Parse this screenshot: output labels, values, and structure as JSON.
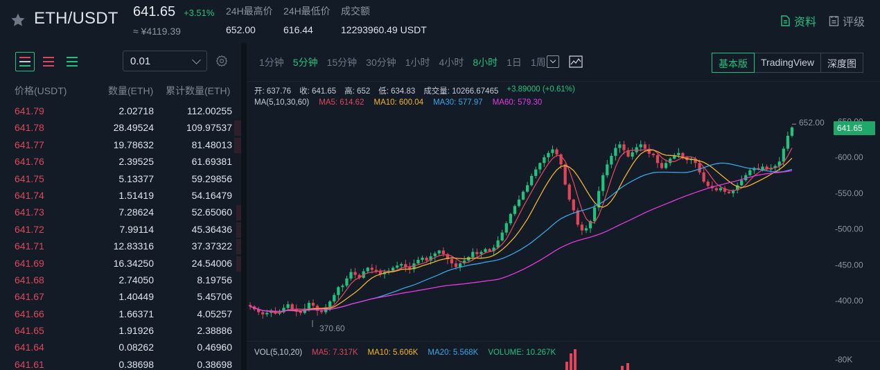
{
  "header": {
    "pair": "ETH/USDT",
    "price": "641.65",
    "change": "+3.51%",
    "cny": "≈ ¥4119.39",
    "stats": [
      {
        "label": "24H最高价",
        "value": "652.00"
      },
      {
        "label": "24H最低价",
        "value": "616.44"
      },
      {
        "label": "成交额",
        "value": "12293960.49 USDT"
      }
    ],
    "links": [
      {
        "label": "资料",
        "icon": "document-icon"
      },
      {
        "label": "评级",
        "icon": "rating-icon"
      }
    ]
  },
  "orderbook": {
    "precision": "0.01",
    "headers": {
      "price": "价格(USDT)",
      "amount": "数量(ETH)",
      "total": "累计数量(ETH)"
    },
    "rows": [
      {
        "price": "641.79",
        "amount": "2.02718",
        "total": "112.00255",
        "depth": 0
      },
      {
        "price": "641.78",
        "amount": "28.49524",
        "total": "109.97537",
        "depth": 0.03
      },
      {
        "price": "641.77",
        "amount": "19.78632",
        "total": "81.48013",
        "depth": 0.03
      },
      {
        "price": "641.76",
        "amount": "2.39525",
        "total": "61.69381",
        "depth": 0
      },
      {
        "price": "641.75",
        "amount": "5.13377",
        "total": "59.29856",
        "depth": 0
      },
      {
        "price": "641.74",
        "amount": "1.51419",
        "total": "54.16479",
        "depth": 0
      },
      {
        "price": "641.73",
        "amount": "7.28624",
        "total": "52.65060",
        "depth": 0.02
      },
      {
        "price": "641.72",
        "amount": "7.99114",
        "total": "45.36436",
        "depth": 0.02
      },
      {
        "price": "641.71",
        "amount": "12.83316",
        "total": "37.37322",
        "depth": 0.02
      },
      {
        "price": "641.69",
        "amount": "16.34250",
        "total": "24.54006",
        "depth": 0.02
      },
      {
        "price": "641.68",
        "amount": "2.74050",
        "total": "8.19756",
        "depth": 0
      },
      {
        "price": "641.67",
        "amount": "1.40449",
        "total": "5.45706",
        "depth": 0
      },
      {
        "price": "641.66",
        "amount": "1.66371",
        "total": "4.05257",
        "depth": 0
      },
      {
        "price": "641.65",
        "amount": "1.91926",
        "total": "2.38886",
        "depth": 0
      },
      {
        "price": "641.64",
        "amount": "0.08262",
        "total": "0.46960",
        "depth": 0
      },
      {
        "price": "641.61",
        "amount": "0.38698",
        "total": "0.38698",
        "depth": 0
      }
    ]
  },
  "chart": {
    "timeframes": [
      "1分钟",
      "5分钟",
      "15分钟",
      "30分钟",
      "1小时",
      "4小时",
      "8小时",
      "1日",
      "1周"
    ],
    "active_timeframes": [
      "5分钟",
      "8小时"
    ],
    "views": [
      "基本版",
      "TradingView",
      "深度图"
    ],
    "active_view": "基本版",
    "ohlc": {
      "open": "开: 637.76",
      "close": "收: 641.65",
      "high": "高: 652",
      "low": "低: 634.83",
      "volume": "成交量: 10266.67465",
      "change": "+3.89000 (+0.61%)"
    },
    "ma_legend": [
      {
        "text": "MA(5,10,30,60)",
        "color": "#c7ced9"
      },
      {
        "text": "MA5: 614.62",
        "color": "#e0465a"
      },
      {
        "text": "MA10: 600.04",
        "color": "#f5b52a"
      },
      {
        "text": "MA30: 577.97",
        "color": "#3aa6e8"
      },
      {
        "text": "MA60: 579.30",
        "color": "#e83ae0"
      }
    ],
    "vol_legend": [
      {
        "text": "VOL(5,10,20)",
        "color": "#c7ced9"
      },
      {
        "text": "MA5: 7.317K",
        "color": "#e0465a"
      },
      {
        "text": "MA10: 5.606K",
        "color": "#f5b52a"
      },
      {
        "text": "MA20: 5.568K",
        "color": "#3aa6e8"
      },
      {
        "text": "VOLUME: 10.267K",
        "color": "#22c27e"
      }
    ],
    "last_price": "641.65",
    "high_marker": "652.00",
    "low_marker": "370.60",
    "y_ticks": [
      "-650.00",
      "-600.00",
      "-550.00",
      "-500.00",
      "-450.00",
      "-400.00"
    ],
    "vol_tick": "-80K"
  },
  "chart_data": {
    "type": "candlestick",
    "y_ticks": [
      650,
      600,
      550,
      500,
      450,
      400
    ],
    "high": 652.0,
    "low": 370.6,
    "last": 641.65,
    "close_path": [
      392,
      388,
      384,
      381,
      383,
      386,
      382,
      384,
      390,
      395,
      388,
      385,
      383,
      389,
      397,
      393,
      386,
      384,
      391,
      399,
      408,
      419,
      421,
      431,
      440,
      436,
      432,
      441,
      446,
      443,
      441,
      437,
      440,
      442,
      446,
      449,
      451,
      447,
      444,
      452,
      457,
      460,
      456,
      462,
      466,
      470,
      465,
      458,
      452,
      447,
      452,
      456,
      461,
      468,
      465,
      468,
      472,
      469,
      474,
      484,
      495,
      508,
      521,
      532,
      541,
      552,
      561,
      574,
      583,
      592,
      600,
      606,
      611,
      604,
      590,
      562,
      541,
      526,
      506,
      498,
      501,
      511,
      530,
      553,
      575,
      590,
      602,
      613,
      618,
      610,
      601,
      607,
      614,
      618,
      612,
      605,
      603,
      592,
      585,
      592,
      598,
      603,
      606,
      600,
      596,
      598,
      592,
      579,
      566,
      560,
      557,
      554,
      557,
      552,
      550,
      554,
      561,
      568,
      575,
      582,
      585,
      583,
      587,
      583,
      585,
      588,
      594,
      612,
      630,
      641.65
    ]
  }
}
